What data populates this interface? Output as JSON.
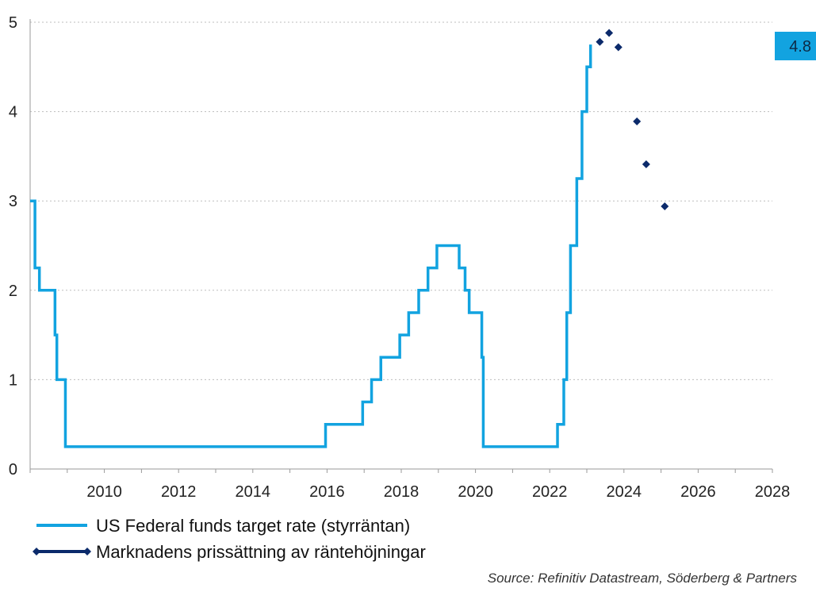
{
  "chart_data": {
    "type": "line",
    "title": "",
    "xlabel": "",
    "ylabel": "",
    "xlim": [
      2008.0,
      2028.0
    ],
    "ylim": [
      0,
      5
    ],
    "x_ticks": [
      "2010",
      "2012",
      "2014",
      "2016",
      "2018",
      "2020",
      "2022",
      "2024",
      "2026",
      "2028"
    ],
    "y_ticks": [
      "0",
      "1",
      "2",
      "3",
      "4",
      "5"
    ],
    "grid": "horizontal dotted",
    "legend_position": "bottom-left",
    "series": [
      {
        "name": "US Federal funds target rate (styrräntan)",
        "color": "#12a3e0",
        "style": "step",
        "x": [
          2008.0,
          2008.13,
          2008.25,
          2008.67,
          2008.72,
          2008.95,
          2015.96,
          2016.96,
          2017.2,
          2017.45,
          2017.96,
          2018.2,
          2018.47,
          2018.72,
          2018.96,
          2019.56,
          2019.72,
          2019.83,
          2020.17,
          2020.21,
          2022.21,
          2022.38,
          2022.46,
          2022.56,
          2022.73,
          2022.87,
          2023.0,
          2023.1
        ],
        "y": [
          3.0,
          2.25,
          2.0,
          1.5,
          1.0,
          0.25,
          0.5,
          0.75,
          1.0,
          1.25,
          1.5,
          1.75,
          2.0,
          2.25,
          2.5,
          2.25,
          2.0,
          1.75,
          1.25,
          0.25,
          0.5,
          1.0,
          1.75,
          2.5,
          3.25,
          4.0,
          4.5,
          4.75
        ]
      },
      {
        "name": "Marknadens prissättning av räntehöjningar",
        "color": "#0b2a6b",
        "style": "markers",
        "x": [
          2023.35,
          2023.6,
          2023.85,
          2024.35,
          2024.6,
          2025.1
        ],
        "y": [
          4.78,
          4.88,
          4.72,
          3.89,
          3.41,
          2.94
        ]
      }
    ],
    "annotation": {
      "label": "4.8",
      "color": "#12a3e0"
    },
    "source": "Source: Refinitiv Datastream, Söderberg & Partners"
  }
}
